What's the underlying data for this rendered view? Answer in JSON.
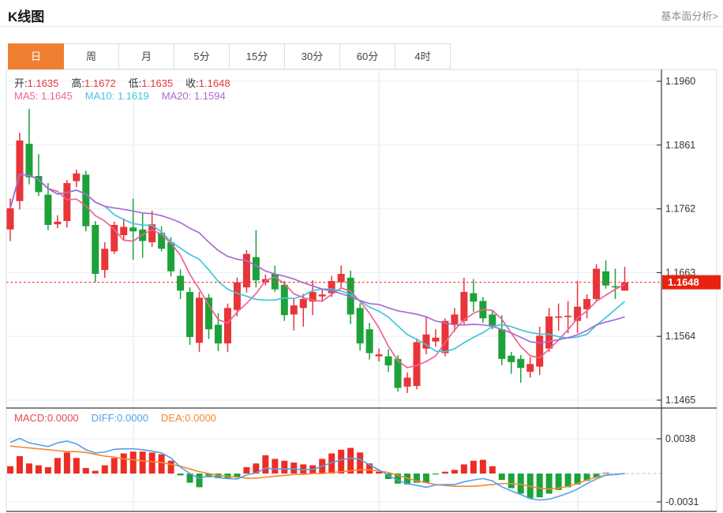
{
  "header": {
    "title": "K线图",
    "analysis_link": "基本面分析>"
  },
  "tabs": {
    "items": [
      "日",
      "周",
      "月",
      "5分",
      "15分",
      "30分",
      "60分",
      "4时"
    ],
    "active": "日"
  },
  "ohlc": {
    "open_label": "开:",
    "open": "1.1635",
    "high_label": "高:",
    "high": "1.1672",
    "low_label": "低:",
    "low": "1.1635",
    "close_label": "收:",
    "close": "1.1648"
  },
  "ma_row": {
    "ma5_label": "MA5:",
    "ma5": "1.1645",
    "ma10_label": "MA10:",
    "ma10": "1.1619",
    "ma20_label": "MA20:",
    "ma20": "1.1594"
  },
  "macd_row": {
    "macd_label": "MACD:",
    "macd": "0.0000",
    "diff_label": "DIFF:",
    "diff": "0.0000",
    "dea_label": "DEA:",
    "dea": "0.0000"
  },
  "colors": {
    "up": "#e83539",
    "down": "#1da23a",
    "ma5": "#ef6393",
    "ma10": "#3fc5de",
    "ma20": "#a96bd4",
    "diff_line": "#55a0e8",
    "dea_line": "#f4882e",
    "hist_up": "#ec2d25",
    "hist_down": "#1da23a",
    "price_line": "#f43a2f",
    "badge_bg": "#e8220e",
    "accent": "#ef7f31",
    "grid": "#e7edf6",
    "vgrid": "#dde6f0",
    "axis": "#3a3a3a",
    "tick_text": "#333333",
    "zero_dash": "#a9d6ee"
  },
  "chart_data": {
    "type": "candlestick_with_macd",
    "title": "K线图",
    "legend": [
      "MA5",
      "MA10",
      "MA20",
      "MACD",
      "DIFF",
      "DEA"
    ],
    "y_axis": {
      "ticks": [
        1.196,
        1.1861,
        1.1762,
        1.1663,
        1.1564,
        1.1465
      ],
      "current_price": 1.1648
    },
    "macd_axis": {
      "ticks": [
        0.0038,
        -0.0031
      ]
    },
    "ma_periods": [
      5,
      10,
      20
    ],
    "candles_format": [
      "open",
      "high",
      "low",
      "close"
    ],
    "candles": [
      [
        1.173,
        1.1778,
        1.1712,
        1.1763
      ],
      [
        1.1774,
        1.188,
        1.1761,
        1.1868
      ],
      [
        1.1863,
        1.1917,
        1.18,
        1.1811
      ],
      [
        1.1813,
        1.1847,
        1.1782,
        1.1788
      ],
      [
        1.1784,
        1.1802,
        1.1729,
        1.1737
      ],
      [
        1.1738,
        1.1752,
        1.1732,
        1.1742
      ],
      [
        1.1743,
        1.1807,
        1.1733,
        1.1802
      ],
      [
        1.1805,
        1.1823,
        1.1796,
        1.1817
      ],
      [
        1.1815,
        1.1821,
        1.1727,
        1.1735
      ],
      [
        1.1737,
        1.1743,
        1.1648,
        1.1661
      ],
      [
        1.1667,
        1.171,
        1.1655,
        1.17
      ],
      [
        1.1696,
        1.1742,
        1.1692,
        1.1737
      ],
      [
        1.1721,
        1.1747,
        1.1714,
        1.1734
      ],
      [
        1.1733,
        1.1778,
        1.1683,
        1.1727
      ],
      [
        1.173,
        1.1755,
        1.1686,
        1.1712
      ],
      [
        1.171,
        1.1759,
        1.1703,
        1.1738
      ],
      [
        1.1725,
        1.1735,
        1.1696,
        1.17
      ],
      [
        1.171,
        1.1718,
        1.1657,
        1.1665
      ],
      [
        1.1658,
        1.1668,
        1.1622,
        1.1635
      ],
      [
        1.1633,
        1.164,
        1.1551,
        1.1563
      ],
      [
        1.1554,
        1.1633,
        1.154,
        1.1624
      ],
      [
        1.1624,
        1.163,
        1.156,
        1.1575
      ],
      [
        1.1582,
        1.16,
        1.1541,
        1.1553
      ],
      [
        1.1553,
        1.1615,
        1.154,
        1.1608
      ],
      [
        1.1605,
        1.1655,
        1.1595,
        1.1648
      ],
      [
        1.164,
        1.1698,
        1.1632,
        1.1692
      ],
      [
        1.1687,
        1.1729,
        1.164,
        1.1651
      ],
      [
        1.1648,
        1.166,
        1.1643,
        1.1653
      ],
      [
        1.1661,
        1.1674,
        1.1633,
        1.1637
      ],
      [
        1.1644,
        1.165,
        1.1588,
        1.1597
      ],
      [
        1.1598,
        1.1624,
        1.1573,
        1.1612
      ],
      [
        1.1608,
        1.163,
        1.1579,
        1.1622
      ],
      [
        1.1618,
        1.1651,
        1.1597,
        1.1633
      ],
      [
        1.1626,
        1.1638,
        1.1618,
        1.1629
      ],
      [
        1.1631,
        1.1658,
        1.1625,
        1.165
      ],
      [
        1.1648,
        1.1674,
        1.164,
        1.1661
      ],
      [
        1.1655,
        1.1666,
        1.1583,
        1.1598
      ],
      [
        1.1608,
        1.1615,
        1.1542,
        1.1553
      ],
      [
        1.1575,
        1.1585,
        1.1528,
        1.1538
      ],
      [
        1.1533,
        1.1545,
        1.1525,
        1.1536
      ],
      [
        1.1533,
        1.1544,
        1.1509,
        1.1519
      ],
      [
        1.1529,
        1.1535,
        1.1478,
        1.1484
      ],
      [
        1.1486,
        1.1508,
        1.1476,
        1.15
      ],
      [
        1.1487,
        1.1561,
        1.1482,
        1.1555
      ],
      [
        1.1545,
        1.1595,
        1.1536,
        1.1567
      ],
      [
        1.1556,
        1.1575,
        1.1548,
        1.1562
      ],
      [
        1.1538,
        1.1592,
        1.1533,
        1.1588
      ],
      [
        1.1583,
        1.1608,
        1.1571,
        1.1598
      ],
      [
        1.1588,
        1.1655,
        1.1583,
        1.1633
      ],
      [
        1.1631,
        1.1653,
        1.1602,
        1.1618
      ],
      [
        1.1619,
        1.1625,
        1.1585,
        1.1592
      ],
      [
        1.1598,
        1.1605,
        1.1575,
        1.1581
      ],
      [
        1.1575,
        1.1597,
        1.1519,
        1.1529
      ],
      [
        1.1534,
        1.154,
        1.1506,
        1.1524
      ],
      [
        1.1529,
        1.1535,
        1.1492,
        1.1515
      ],
      [
        1.1509,
        1.1532,
        1.15,
        1.1521
      ],
      [
        1.1517,
        1.1579,
        1.1504,
        1.1565
      ],
      [
        1.1545,
        1.1608,
        1.154,
        1.1595
      ],
      [
        1.1593,
        1.1615,
        1.1573,
        1.1595
      ],
      [
        1.1594,
        1.1619,
        1.1569,
        1.1596
      ],
      [
        1.1588,
        1.165,
        1.1569,
        1.161
      ],
      [
        1.1606,
        1.1629,
        1.1592,
        1.1622
      ],
      [
        1.1622,
        1.1676,
        1.1618,
        1.1669
      ],
      [
        1.1665,
        1.1682,
        1.1638,
        1.1643
      ],
      [
        1.1642,
        1.1669,
        1.1622,
        1.1641
      ],
      [
        1.1635,
        1.1672,
        1.1635,
        1.1648
      ]
    ],
    "macd_hist": [
      0.0008,
      0.0019,
      0.0011,
      0.0009,
      0.0007,
      0.0017,
      0.0023,
      0.0017,
      0.0006,
      0.0003,
      0.0009,
      0.0017,
      0.0022,
      0.0024,
      0.0024,
      0.0023,
      0.0021,
      0.0014,
      -0.0002,
      -0.001,
      -0.0015,
      -0.0004,
      -0.0005,
      -0.0005,
      -0.0004,
      0.0007,
      0.0011,
      0.002,
      0.0016,
      0.0014,
      0.0012,
      0.001,
      0.0009,
      0.0016,
      0.0022,
      0.0026,
      0.0028,
      0.0023,
      0.0011,
      0.0002,
      -0.0006,
      -0.0011,
      -0.0012,
      -0.001,
      -0.001,
      -0.0001,
      0.0002,
      0.0004,
      0.001,
      0.0014,
      0.0015,
      0.0008,
      -0.0007,
      -0.0016,
      -0.0022,
      -0.0027,
      -0.0026,
      -0.0022,
      -0.0018,
      -0.0015,
      -0.0012,
      -0.0008,
      -0.0004,
      0.0001,
      0.0,
      0.0
    ],
    "dea": [
      0.003,
      0.0029,
      0.0028,
      0.0027,
      0.0026,
      0.0025,
      0.0024,
      0.0024,
      0.0023,
      0.0021,
      0.0019,
      0.0018,
      0.0016,
      0.0015,
      0.0014,
      0.0013,
      0.0012,
      0.001,
      0.0008,
      0.0005,
      0.0002,
      0.0,
      -0.0002,
      -0.0003,
      -0.0004,
      -0.0005,
      -0.0005,
      -0.0004,
      -0.0003,
      -0.0002,
      -0.0001,
      -0.0001,
      0.0,
      0.0,
      0.0001,
      0.0002,
      0.0003,
      0.0004,
      0.0004,
      0.0003,
      0.0001,
      -0.0002,
      -0.0005,
      -0.0008,
      -0.001,
      -0.0012,
      -0.0013,
      -0.0014,
      -0.0014,
      -0.0014,
      -0.0013,
      -0.0012,
      -0.0011,
      -0.0011,
      -0.0012,
      -0.0014,
      -0.0016,
      -0.0017,
      -0.0016,
      -0.0014,
      -0.0011,
      -0.0007,
      -0.0004,
      -0.0002,
      -0.0001,
      0.0
    ]
  }
}
